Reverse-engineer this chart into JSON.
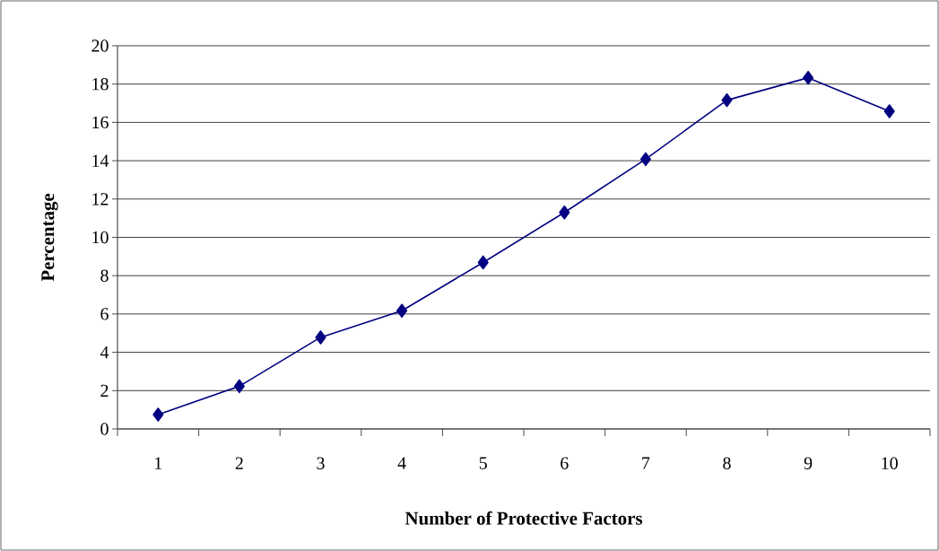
{
  "chart_data": {
    "type": "line",
    "xlabel": "Number of Protective Factors",
    "ylabel": "Percentage",
    "categories": [
      "1",
      "2",
      "3",
      "4",
      "5",
      "6",
      "7",
      "8",
      "9",
      "10"
    ],
    "values": [
      0.75,
      2.23,
      4.78,
      6.17,
      8.69,
      11.3,
      14.08,
      17.16,
      18.33,
      16.58
    ],
    "color": "#000080",
    "marker": "diamond",
    "line_style": "solid",
    "ylim": [
      0,
      20
    ],
    "yticks": [
      0,
      2,
      4,
      6,
      8,
      10,
      12,
      14,
      16,
      18,
      20
    ],
    "grid": "y"
  }
}
